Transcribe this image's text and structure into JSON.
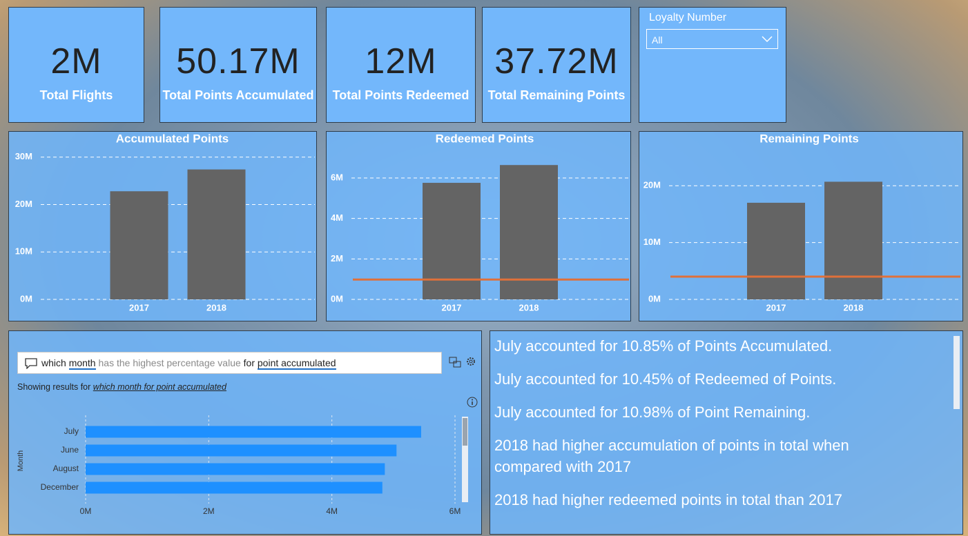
{
  "cards": [
    {
      "value": "2M",
      "label": "Total Flights"
    },
    {
      "value": "50.17M",
      "label": "Total Points Accumulated"
    },
    {
      "value": "12M",
      "label": "Total Points Redeemed"
    },
    {
      "value": "37.72M",
      "label": "Total Remaining Points"
    }
  ],
  "slicer": {
    "title": "Loyalty Number",
    "selected": "All"
  },
  "chart_data": [
    {
      "type": "bar",
      "title": "Accumulated Points",
      "categories": [
        "2017",
        "2018"
      ],
      "values": [
        22800000,
        27400000
      ],
      "color": "#646464",
      "grid": true,
      "ylim": [
        0,
        32000000
      ],
      "yticks": [
        {
          "value": 0,
          "label": "0M"
        },
        {
          "value": 10000000,
          "label": "10M"
        },
        {
          "value": 20000000,
          "label": "20M"
        },
        {
          "value": 30000000,
          "label": "30M"
        }
      ]
    },
    {
      "type": "bar",
      "title": "Redeemed Points",
      "categories": [
        "2017",
        "2018"
      ],
      "values": [
        5760000,
        6640000
      ],
      "color": "#646464",
      "grid": true,
      "reference_value": 980000,
      "reference_color": "#e0703a",
      "ylim": [
        0,
        7500000
      ],
      "yticks": [
        {
          "value": 0,
          "label": "0M"
        },
        {
          "value": 2000000,
          "label": "2M"
        },
        {
          "value": 4000000,
          "label": "4M"
        },
        {
          "value": 6000000,
          "label": "6M"
        }
      ]
    },
    {
      "type": "bar",
      "title": "Remaining Points",
      "categories": [
        "2017",
        "2018"
      ],
      "values": [
        17000000,
        20700000
      ],
      "color": "#646464",
      "grid": true,
      "reference_value": 4000000,
      "reference_color": "#e0703a",
      "ylim": [
        0,
        26700000
      ],
      "yticks": [
        {
          "value": 0,
          "label": "0M"
        },
        {
          "value": 10000000,
          "label": "10M"
        },
        {
          "value": 20000000,
          "label": "20M"
        }
      ]
    },
    {
      "type": "barh",
      "y_label": "Month",
      "categories": [
        "July",
        "June",
        "August",
        "December"
      ],
      "values": [
        5450000,
        5050000,
        4860000,
        4820000
      ],
      "color": "#1e90ff",
      "grid": true,
      "xlim": [
        0,
        6000000
      ],
      "xticks": [
        {
          "value": 0,
          "label": "0M"
        },
        {
          "value": 2000000,
          "label": "2M"
        },
        {
          "value": 4000000,
          "label": "4M"
        },
        {
          "value": 6000000,
          "label": "6M"
        }
      ]
    }
  ],
  "qa": {
    "query": [
      {
        "text": "which",
        "kind": "plain"
      },
      {
        "text": "month",
        "kind": "term"
      },
      {
        "text": "has the highest  percentage value",
        "kind": "ignored"
      },
      {
        "text": "for",
        "kind": "plain"
      },
      {
        "text": "point accumulated",
        "kind": "term"
      }
    ],
    "showing_prefix": "Showing results for",
    "showing_query": "which month for point accumulated"
  },
  "insights": [
    "July accounted for 10.85% of Points Accumulated.",
    "July accounted for 10.45% of Redeemed of Points.",
    "July accounted for 10.98% of Point Remaining.",
    "2018 had higher accumulation of points in total when compared with 2017",
    "2018 had higher redeemed points in total than 2017"
  ]
}
